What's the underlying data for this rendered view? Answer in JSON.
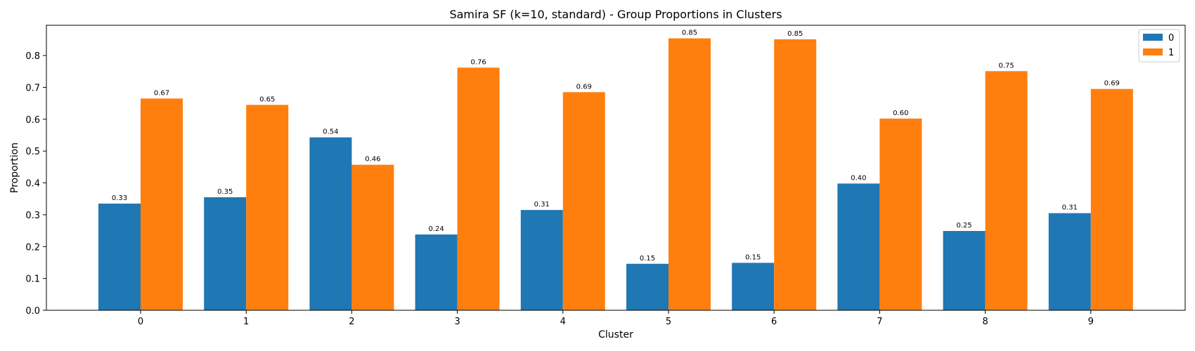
{
  "chart_data": {
    "type": "bar",
    "title": "Samira SF (k=10, standard) - Group Proportions in Clusters",
    "xlabel": "Cluster",
    "ylabel": "Proportion",
    "categories": [
      "0",
      "1",
      "2",
      "3",
      "4",
      "5",
      "6",
      "7",
      "8",
      "9"
    ],
    "series": [
      {
        "name": "0",
        "color": "#1f77b4",
        "values": [
          0.335,
          0.355,
          0.543,
          0.238,
          0.315,
          0.146,
          0.149,
          0.398,
          0.249,
          0.305
        ],
        "labels": [
          "0.33",
          "0.35",
          "0.54",
          "0.24",
          "0.31",
          "0.15",
          "0.15",
          "0.40",
          "0.25",
          "0.31"
        ]
      },
      {
        "name": "1",
        "color": "#ff7f0e",
        "values": [
          0.665,
          0.645,
          0.457,
          0.762,
          0.685,
          0.854,
          0.851,
          0.602,
          0.751,
          0.695
        ],
        "labels": [
          "0.67",
          "0.65",
          "0.46",
          "0.76",
          "0.69",
          "0.85",
          "0.85",
          "0.60",
          "0.75",
          "0.69"
        ]
      }
    ],
    "ylim": [
      0,
      0.895
    ],
    "yticks": [
      "0.0",
      "0.1",
      "0.2",
      "0.3",
      "0.4",
      "0.5",
      "0.6",
      "0.7",
      "0.8"
    ],
    "legend_position": "top-right",
    "grid": false
  }
}
